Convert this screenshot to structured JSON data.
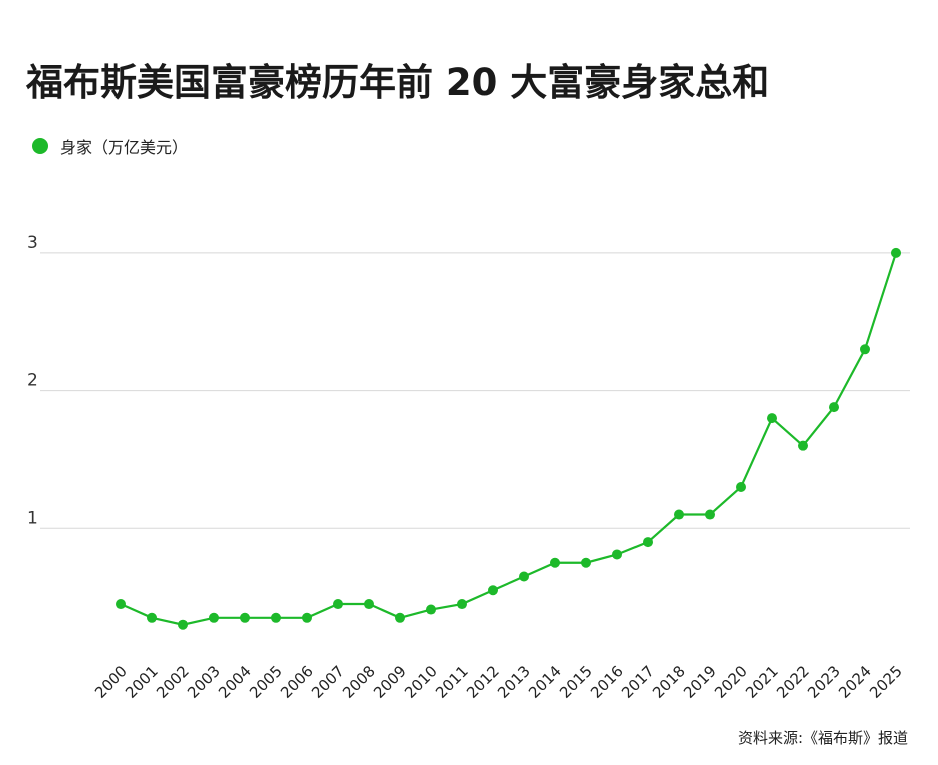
{
  "chart_data": {
    "type": "line",
    "title": "福布斯美国富豪榜历年前 20 大富豪身家总和",
    "legend": {
      "label": "身家（万亿美元）",
      "placement": "top-left"
    },
    "xlabel": "",
    "ylabel": "",
    "ylim": [
      0,
      3
    ],
    "yticks": [
      "1",
      "2",
      "3"
    ],
    "grid": true,
    "color": "#1db92a",
    "categories": [
      "2000",
      "2001",
      "2002",
      "2003",
      "2004",
      "2005",
      "2006",
      "2007",
      "2008",
      "2009",
      "2010",
      "2011",
      "2012",
      "2013",
      "2014",
      "2015",
      "2016",
      "2017",
      "2018",
      "2019",
      "2020",
      "2021",
      "2022",
      "2023",
      "2024",
      "2025"
    ],
    "series": [
      {
        "name": "身家（万亿美元）",
        "values": [
          0.45,
          0.35,
          0.3,
          0.35,
          0.35,
          0.35,
          0.35,
          0.45,
          0.45,
          0.35,
          0.41,
          0.45,
          0.55,
          0.65,
          0.75,
          0.75,
          0.81,
          0.9,
          1.1,
          1.1,
          1.3,
          1.8,
          1.6,
          1.88,
          2.3,
          3.0
        ]
      }
    ],
    "source": "资料来源:《福布斯》报道"
  }
}
